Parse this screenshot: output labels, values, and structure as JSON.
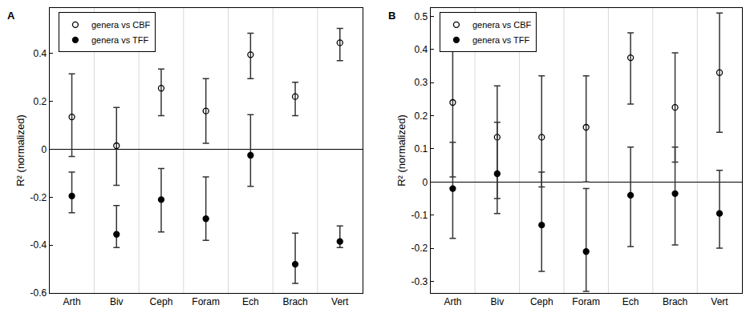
{
  "chart_data": [
    {
      "type": "scatter",
      "title": "A",
      "ylabel": "R² (normalized)",
      "categories": [
        "Arth",
        "Biv",
        "Ceph",
        "Foram",
        "Ech",
        "Brach",
        "Vert"
      ],
      "ylim": [
        -0.6,
        0.59
      ],
      "yticks": [
        -0.6,
        -0.4,
        -0.2,
        0,
        0.2,
        0.4
      ],
      "grid": false,
      "legend": "top left",
      "series": [
        {
          "name": "genera vs CBF",
          "color": "#000000",
          "marker": "circle-open",
          "values": [
            0.135,
            0.015,
            0.255,
            0.16,
            0.395,
            0.22,
            0.445
          ],
          "errors_plus": [
            0.18,
            0.16,
            0.08,
            0.135,
            0.09,
            0.06,
            0.06
          ],
          "errors_minus": [
            0.165,
            0.165,
            0.115,
            0.135,
            0.1,
            0.08,
            0.075
          ]
        },
        {
          "name": "genera vs TFF",
          "color": "#000000",
          "marker": "circle",
          "values": [
            -0.195,
            -0.355,
            -0.21,
            -0.29,
            -0.025,
            -0.48,
            -0.385
          ],
          "errors_plus": [
            0.1,
            0.12,
            0.13,
            0.175,
            0.17,
            0.13,
            0.065
          ],
          "errors_minus": [
            0.07,
            0.055,
            0.135,
            0.09,
            0.13,
            0.08,
            0.025
          ]
        }
      ]
    },
    {
      "type": "scatter",
      "title": "B",
      "ylabel": "R² (normalized)",
      "categories": [
        "Arth",
        "Biv",
        "Ceph",
        "Foram",
        "Ech",
        "Brach",
        "Vert"
      ],
      "ylim": [
        -0.335,
        0.525
      ],
      "yticks": [
        -0.3,
        -0.2,
        -0.1,
        0,
        0.1,
        0.2,
        0.3,
        0.4,
        0.5
      ],
      "grid": false,
      "legend": "top left",
      "series": [
        {
          "name": "genera vs CBF",
          "color": "#000000",
          "marker": "circle-open",
          "values": [
            0.24,
            0.135,
            0.135,
            0.165,
            0.375,
            0.225,
            0.33
          ],
          "errors_plus": [
            0.155,
            0.155,
            0.185,
            0.155,
            0.075,
            0.165,
            0.18
          ],
          "errors_minus": [
            0.225,
            0.185,
            0.15,
            0.165,
            0.14,
            0.165,
            0.18
          ]
        },
        {
          "name": "genera vs TFF",
          "color": "#000000",
          "marker": "circle",
          "values": [
            -0.02,
            0.025,
            -0.13,
            -0.21,
            -0.04,
            -0.035,
            -0.095
          ],
          "errors_plus": [
            0.14,
            0.155,
            0.16,
            0.19,
            0.145,
            0.14,
            0.13
          ],
          "errors_minus": [
            0.15,
            0.12,
            0.14,
            0.12,
            0.155,
            0.155,
            0.105
          ]
        }
      ]
    }
  ]
}
